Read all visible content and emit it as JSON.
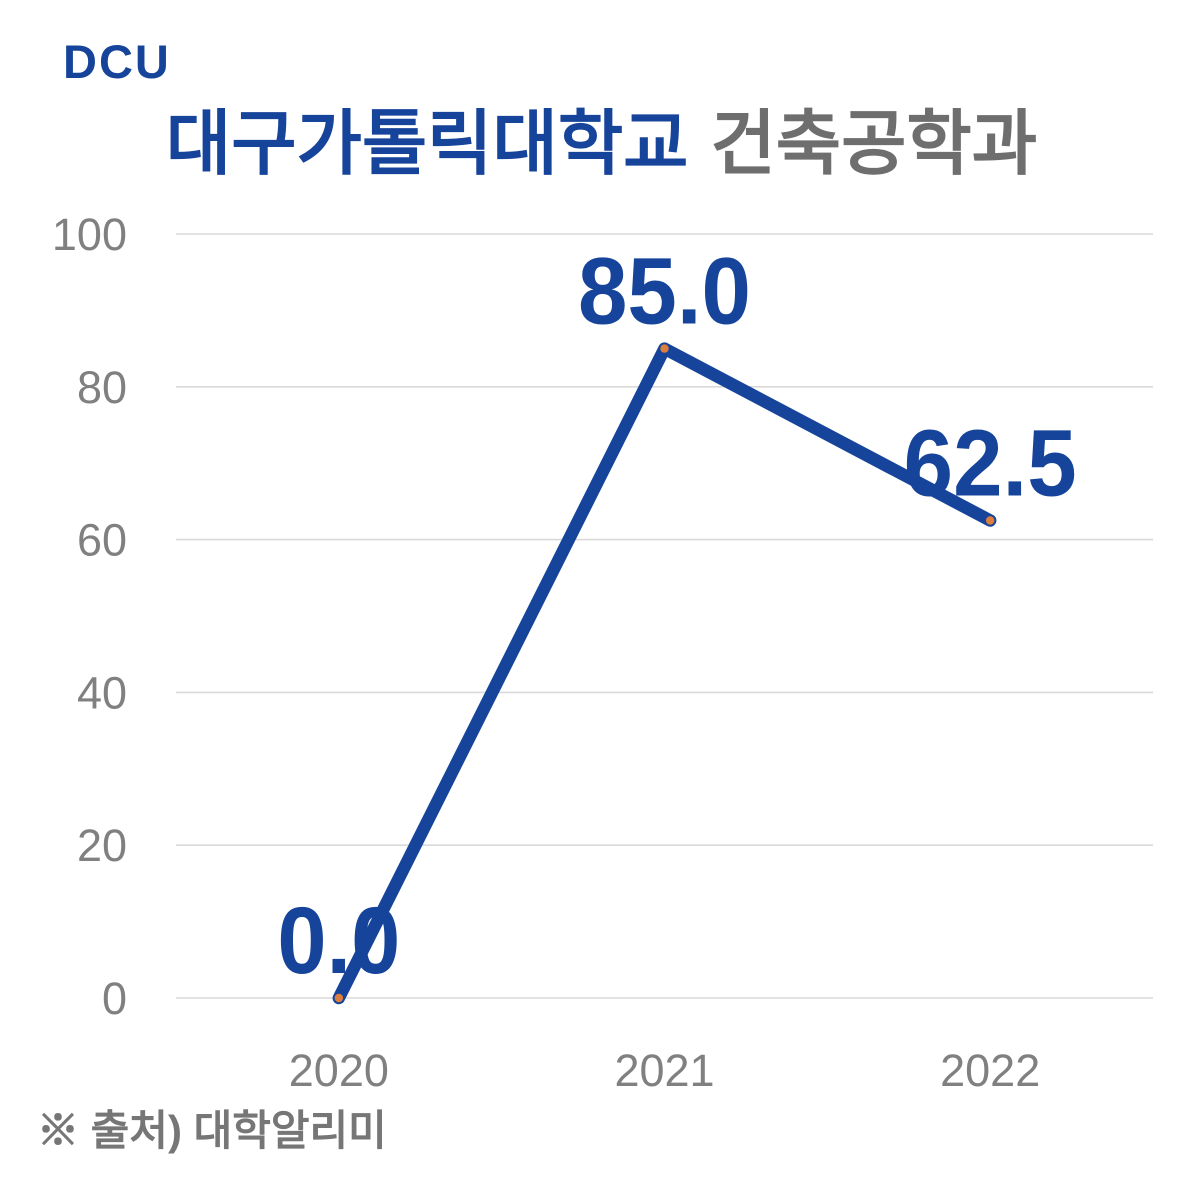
{
  "logo": {
    "text": "DCU"
  },
  "source_note": "※ 출처) 대학알리미",
  "colors": {
    "brand_blue": "#17449B",
    "marker_orange": "#DD7E3C",
    "grid_gray": "#D9D9D9",
    "axis_text_gray": "#808080",
    "title_gray": "#6E6E6E",
    "footer_gray": "#767676"
  },
  "chart_data": {
    "type": "line",
    "title": "대구가톨릭대학교 건축공학과",
    "title_primary": "대구가톨릭대학교",
    "title_secondary": "건축공학과",
    "categories": [
      "2020",
      "2021",
      "2022"
    ],
    "values": [
      0.0,
      85.0,
      62.5
    ],
    "data_labels": [
      "0.0",
      "85.0",
      "62.5"
    ],
    "xlabel": "",
    "ylabel": "",
    "ylim": [
      0,
      100
    ],
    "yticks": [
      0,
      20,
      40,
      60,
      80,
      100
    ],
    "grid": true,
    "legend": false,
    "line_color": "#17449B",
    "marker_color": "#DD7E3C"
  }
}
